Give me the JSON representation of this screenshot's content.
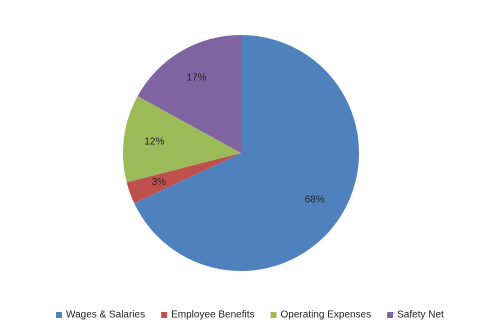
{
  "chart_data": {
    "type": "pie",
    "categories": [
      "Wages & Salaries",
      "Employee Benefits",
      "Operating Expenses",
      "Safety Net"
    ],
    "values": [
      68,
      3,
      12,
      17
    ],
    "value_labels": [
      "68%",
      "3%",
      "12%",
      "17%"
    ],
    "colors": [
      "#4f81bd",
      "#c0504d",
      "#9bbb59",
      "#8064a2"
    ],
    "legend": "bottom"
  }
}
